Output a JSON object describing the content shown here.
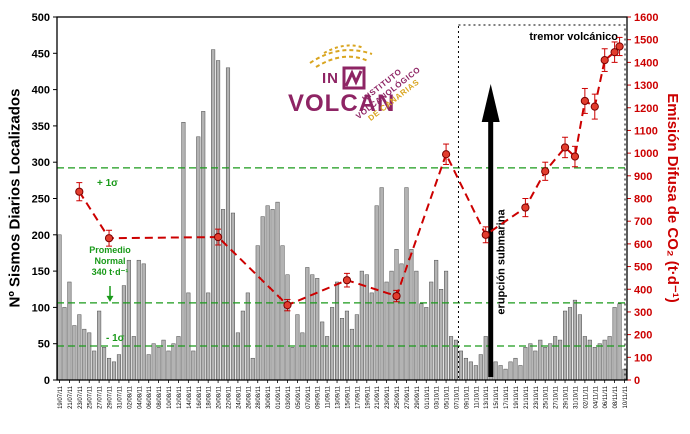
{
  "logo": {
    "in": "IN",
    "name": "VOLCAN",
    "line1": "INSTITUTO",
    "line2": "VOLCANOLÓGICO",
    "line3": "DE CANARIAS"
  },
  "chart_data": {
    "type": "bar",
    "title": "",
    "axes": {
      "left": {
        "label": "Nº Sismos Diarios Localizados",
        "min": 0,
        "max": 500,
        "step": 50,
        "color": "#000000"
      },
      "right": {
        "label": "Emisión Difusa de CO₂ (t·d⁻¹)",
        "min": 0,
        "max": 1600,
        "step": 100,
        "color": "#cc0000"
      }
    },
    "x_tick_step": 2,
    "categories": [
      "19/07/11",
      "20/07/11",
      "21/07/11",
      "22/07/11",
      "23/07/11",
      "24/07/11",
      "25/07/11",
      "26/07/11",
      "27/07/11",
      "28/07/11",
      "29/07/11",
      "30/07/11",
      "31/07/11",
      "01/08/11",
      "02/08/11",
      "03/08/11",
      "04/08/11",
      "05/08/11",
      "06/08/11",
      "07/08/11",
      "08/08/11",
      "09/08/11",
      "10/08/11",
      "11/08/11",
      "12/08/11",
      "13/08/11",
      "14/08/11",
      "15/08/11",
      "16/08/11",
      "17/08/11",
      "18/08/11",
      "19/08/11",
      "20/08/11",
      "21/08/11",
      "22/08/11",
      "23/08/11",
      "24/08/11",
      "25/08/11",
      "26/08/11",
      "27/08/11",
      "28/08/11",
      "29/08/11",
      "30/08/11",
      "31/08/11",
      "01/09/11",
      "02/09/11",
      "03/09/11",
      "04/09/11",
      "05/09/11",
      "06/09/11",
      "07/09/11",
      "08/09/11",
      "09/09/11",
      "10/09/11",
      "11/09/11",
      "12/09/11",
      "13/09/11",
      "14/09/11",
      "15/09/11",
      "16/09/11",
      "17/09/11",
      "18/09/11",
      "19/09/11",
      "20/09/11",
      "21/09/11",
      "22/09/11",
      "23/09/11",
      "24/09/11",
      "25/09/11",
      "26/09/11",
      "27/09/11",
      "28/09/11",
      "29/09/11",
      "30/09/11",
      "01/10/11",
      "02/10/11",
      "03/10/11",
      "04/10/11",
      "05/10/11",
      "06/10/11",
      "07/10/11",
      "08/10/11",
      "09/10/11",
      "10/10/11",
      "11/10/11",
      "12/10/11",
      "13/10/11",
      "14/10/11",
      "15/10/11",
      "16/10/11",
      "17/10/11",
      "18/10/11",
      "19/10/11",
      "20/10/11",
      "21/10/11",
      "22/10/11",
      "23/10/11",
      "24/10/11",
      "25/10/11",
      "26/10/11",
      "27/10/11",
      "28/10/11",
      "29/10/11",
      "30/10/11",
      "31/10/11",
      "01/11/11",
      "02/11/11",
      "03/11/11",
      "04/11/11",
      "05/11/11",
      "06/11/11",
      "07/11/11",
      "08/11/11",
      "09/11/11",
      "10/11/11"
    ],
    "series": [
      {
        "name": "Nº Sismos Diarios Localizados",
        "type": "bar",
        "axis": "left",
        "color": "#b3b3b3",
        "edge_color": "#4a4a4a",
        "values": [
          200,
          100,
          135,
          75,
          90,
          70,
          65,
          40,
          95,
          45,
          30,
          25,
          35,
          130,
          165,
          60,
          165,
          160,
          35,
          50,
          45,
          55,
          40,
          50,
          60,
          355,
          120,
          40,
          335,
          370,
          120,
          455,
          440,
          235,
          430,
          230,
          65,
          95,
          120,
          30,
          185,
          225,
          240,
          235,
          245,
          185,
          145,
          45,
          90,
          65,
          155,
          145,
          140,
          80,
          60,
          100,
          135,
          85,
          95,
          70,
          90,
          150,
          145,
          120,
          240,
          265,
          135,
          150,
          180,
          160,
          265,
          180,
          150,
          105,
          100,
          135,
          165,
          125,
          150,
          60,
          55,
          40,
          30,
          25,
          20,
          35,
          60,
          30,
          25,
          20,
          15,
          25,
          30,
          20,
          45,
          50,
          40,
          55,
          45,
          50,
          60,
          55,
          95,
          100,
          110,
          90,
          60,
          55,
          45,
          50,
          55,
          60,
          100,
          105,
          15
        ]
      },
      {
        "name": "Emisión Difusa de CO₂",
        "type": "line",
        "axis": "right",
        "color": "#cc0000",
        "marker_fill": "#e23d2e",
        "marker_edge": "#7a0000",
        "points": [
          {
            "date": "23/07/11",
            "value": 830,
            "err": 40
          },
          {
            "date": "29/07/11",
            "value": 625,
            "err": 35
          },
          {
            "date": "20/08/11",
            "value": 630,
            "err": 35
          },
          {
            "date": "03/09/11",
            "value": 330,
            "err": 25
          },
          {
            "date": "15/09/11",
            "value": 440,
            "err": 30
          },
          {
            "date": "25/09/11",
            "value": 370,
            "err": 25
          },
          {
            "date": "05/10/11",
            "value": 995,
            "err": 45
          },
          {
            "date": "13/10/11",
            "value": 640,
            "err": 35
          },
          {
            "date": "21/10/11",
            "value": 760,
            "err": 40
          },
          {
            "date": "25/10/11",
            "value": 920,
            "err": 40
          },
          {
            "date": "29/10/11",
            "value": 1025,
            "err": 45
          },
          {
            "date": "31/10/11",
            "value": 985,
            "err": 45
          },
          {
            "date": "02/11/11",
            "value": 1230,
            "err": 55
          },
          {
            "date": "04/11/11",
            "value": 1205,
            "err": 55
          },
          {
            "date": "06/11/11",
            "value": 1410,
            "err": 50
          },
          {
            "date": "08/11/11",
            "value": 1445,
            "err": 45
          },
          {
            "date": "09/11/11",
            "value": 1470,
            "err": 40
          }
        ]
      }
    ],
    "reference_lines": [
      {
        "label": "+ 1σ",
        "value": 935,
        "axis": "right",
        "color": "#1a9a1a"
      },
      {
        "label": "Promedio Normal 340 t·d⁻¹",
        "label_lines": [
          "Promedio",
          "Normal",
          "340 t·d⁻¹"
        ],
        "value": 340,
        "axis": "right",
        "color": "#1a9a1a"
      },
      {
        "label": "- 1σ",
        "value": 150,
        "axis": "right",
        "color": "#1a9a1a"
      }
    ],
    "annotations": {
      "tremor": {
        "label": "tremor volcánico",
        "start_date": "08/10/11",
        "end_date": "10/11/11"
      },
      "eruption": {
        "label": "erupción submarina",
        "date": "14/10/11"
      }
    }
  }
}
